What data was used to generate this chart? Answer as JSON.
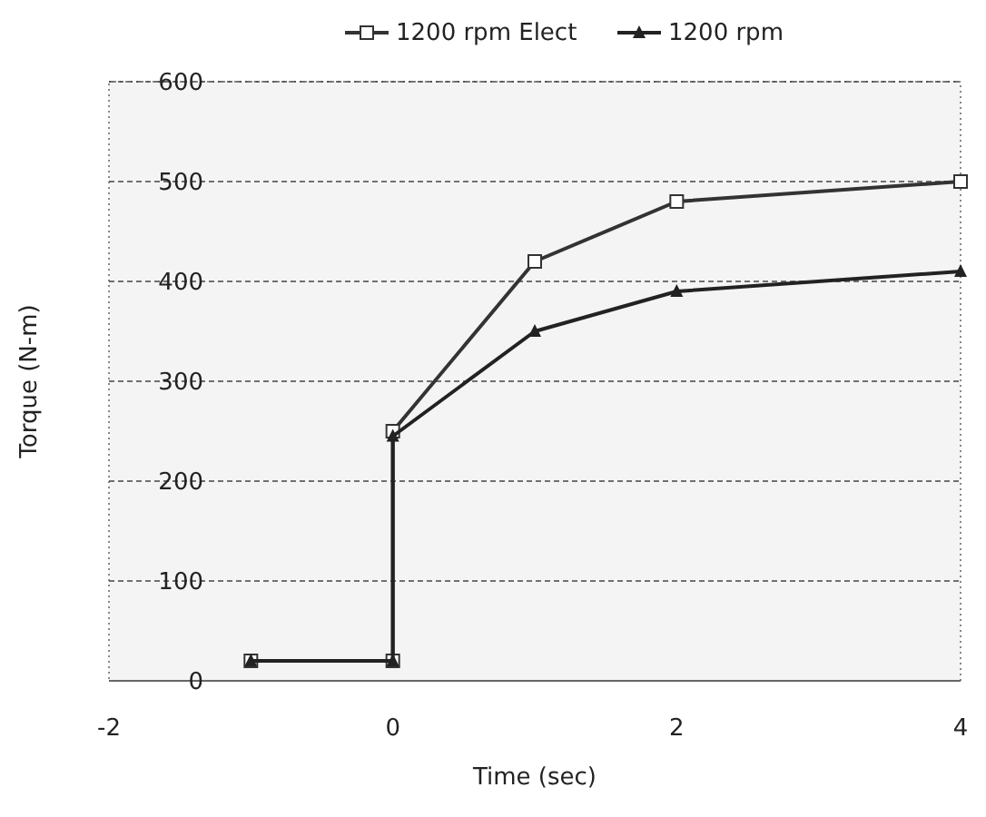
{
  "chart_data": {
    "type": "line",
    "xlabel": "Time (sec)",
    "ylabel": "Torque (N-m)",
    "xlim": [
      -2,
      4
    ],
    "xticks": [
      -2,
      0,
      2,
      4
    ],
    "ylim": [
      0,
      600
    ],
    "yticks": [
      0,
      100,
      200,
      300,
      400,
      500,
      600
    ],
    "grid": "y",
    "legend": "top",
    "line_style": "solid",
    "series": [
      {
        "name": "1200 rpm Elect",
        "color": "#333333",
        "marker": "square",
        "x": [
          -1,
          0,
          0,
          1,
          2,
          4
        ],
        "values": [
          20,
          20,
          250,
          420,
          480,
          500
        ]
      },
      {
        "name": "1200 rpm",
        "color": "#222222",
        "marker": "triangle",
        "x": [
          -1,
          0,
          0,
          1,
          2,
          4
        ],
        "values": [
          20,
          20,
          245,
          350,
          390,
          410
        ]
      }
    ]
  }
}
